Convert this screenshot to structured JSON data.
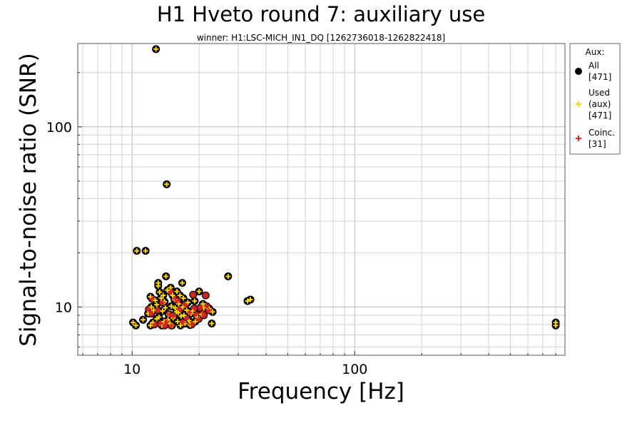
{
  "chart_data": {
    "type": "scatter",
    "title": "H1 Hveto round 7: auxiliary use",
    "subtitle": "winner: H1:LSC-MICH_IN1_DQ [1262736018-1262822418]",
    "xlabel": "Frequency [Hz]",
    "ylabel": "Signal-to-noise ratio (SNR)",
    "xscale": "log",
    "yscale": "log",
    "xlim": [
      5.7,
      880
    ],
    "ylim": [
      5.4,
      290
    ],
    "x_tick_labels": [
      "10",
      "100"
    ],
    "x_ticks": [
      10,
      100
    ],
    "y_tick_labels": [
      "10",
      "100"
    ],
    "y_ticks": [
      10,
      100
    ],
    "grid": true,
    "legend_position": "right",
    "legend": {
      "title": "Aux:",
      "entries": [
        {
          "label_lines": [
            "All",
            "[471]"
          ],
          "marker": "circle",
          "color": "#000000"
        },
        {
          "label_lines": [
            "Used",
            "(aux)",
            "[471]"
          ],
          "marker": "plus",
          "color": "#ffd700"
        },
        {
          "label_lines": [
            "Coinc.",
            "[31]"
          ],
          "marker": "plus",
          "color": "#d62728"
        }
      ]
    },
    "colors": {
      "coinc_face": "#b22222",
      "used": "#ffd700",
      "coinc": "#d62728",
      "all": "#000000"
    },
    "series": [
      {
        "name": "Used (aux)",
        "points": [
          [
            12.8,
            270
          ],
          [
            14.3,
            48
          ],
          [
            10.5,
            20.5
          ],
          [
            11.5,
            20.5
          ],
          [
            27,
            14.8
          ],
          [
            33,
            10.8
          ],
          [
            34,
            11
          ],
          [
            800,
            8.2
          ],
          [
            800,
            7.9
          ],
          [
            10.1,
            8.2
          ],
          [
            10.4,
            7.9
          ],
          [
            12.1,
            7.9
          ],
          [
            22.8,
            8.1
          ],
          [
            14.2,
            14.8
          ],
          [
            13.1,
            13.6
          ],
          [
            13.1,
            13.1
          ],
          [
            16.8,
            13.6
          ],
          [
            20,
            12.2
          ],
          [
            12.1,
            11.4
          ],
          [
            15.2,
            11.6
          ],
          [
            17,
            11.2
          ],
          [
            19.1,
            10.8
          ],
          [
            22.2,
            9.8
          ],
          [
            23,
            9.4
          ],
          [
            18.7,
            9.5
          ],
          [
            11.8,
            9.2
          ],
          [
            11.2,
            8.5
          ],
          [
            12.4,
            8.2
          ],
          [
            12.5,
            9.6
          ],
          [
            12.9,
            10.3
          ],
          [
            13.2,
            8.8
          ],
          [
            13.5,
            11.2
          ],
          [
            13.7,
            9.5
          ],
          [
            13.9,
            8.3
          ],
          [
            14,
            10.7
          ],
          [
            14.4,
            12.4
          ],
          [
            14.6,
            9.1
          ],
          [
            14.8,
            8.1
          ],
          [
            15,
            10.1
          ],
          [
            15.3,
            8.7
          ],
          [
            15.5,
            11
          ],
          [
            15.8,
            9.4
          ],
          [
            16,
            8.3
          ],
          [
            16.2,
            10.4
          ],
          [
            16.6,
            8.9
          ],
          [
            16.9,
            10
          ],
          [
            17.3,
            8.1
          ],
          [
            17.6,
            9.6
          ],
          [
            18,
            8.4
          ],
          [
            18.4,
            9.2
          ],
          [
            19.6,
            8.8
          ],
          [
            20.5,
            9.1
          ],
          [
            21,
            9.9
          ],
          [
            13.3,
            12.1
          ],
          [
            14.9,
            12.8
          ],
          [
            15.9,
            12.2
          ],
          [
            12.7,
            10.9
          ],
          [
            17.8,
            10.6
          ],
          [
            16.4,
            11.6
          ],
          [
            13.6,
            7.9
          ],
          [
            15.1,
            7.9
          ],
          [
            16.5,
            7.9
          ],
          [
            18.2,
            7.95
          ],
          [
            12.9,
            8.6
          ],
          [
            14.5,
            8.5
          ],
          [
            17.1,
            9.0
          ],
          [
            19.2,
            8.3
          ],
          [
            14.1,
            9.9
          ],
          [
            15.6,
            9.9
          ],
          [
            12.2,
            10.0
          ],
          [
            20.8,
            10.4
          ],
          [
            13.8,
            11.6
          ],
          [
            16.1,
            9.3
          ]
        ]
      },
      {
        "name": "Coinc.",
        "points": [
          [
            11.9,
            9.7
          ],
          [
            12.2,
            9.2
          ],
          [
            12.3,
            11.1
          ],
          [
            13.4,
            8.1
          ],
          [
            14.3,
            8.3
          ],
          [
            14.7,
            9.1
          ],
          [
            15.3,
            8.9
          ],
          [
            16.4,
            9.7
          ],
          [
            17.6,
            8.6
          ],
          [
            18.2,
            9.3
          ],
          [
            18.8,
            11.7
          ],
          [
            19.4,
            9.1
          ],
          [
            19.9,
            8.6
          ],
          [
            20.8,
            9.3
          ],
          [
            21.4,
            11.6
          ],
          [
            21.6,
            10.1
          ],
          [
            22.1,
            9.6
          ],
          [
            14.9,
            12.1
          ],
          [
            15.6,
            11.1
          ],
          [
            13.7,
            10.6
          ],
          [
            16.9,
            8.2
          ],
          [
            12.6,
            8.0
          ],
          [
            17.3,
            10.3
          ],
          [
            20.2,
            9.9
          ],
          [
            15.0,
            7.9
          ],
          [
            18.5,
            8.0
          ],
          [
            21.0,
            9.0
          ],
          [
            13.0,
            9.6
          ],
          [
            16.0,
            10.8
          ],
          [
            19.0,
            9.8
          ],
          [
            14.0,
            7.9
          ]
        ]
      }
    ]
  }
}
